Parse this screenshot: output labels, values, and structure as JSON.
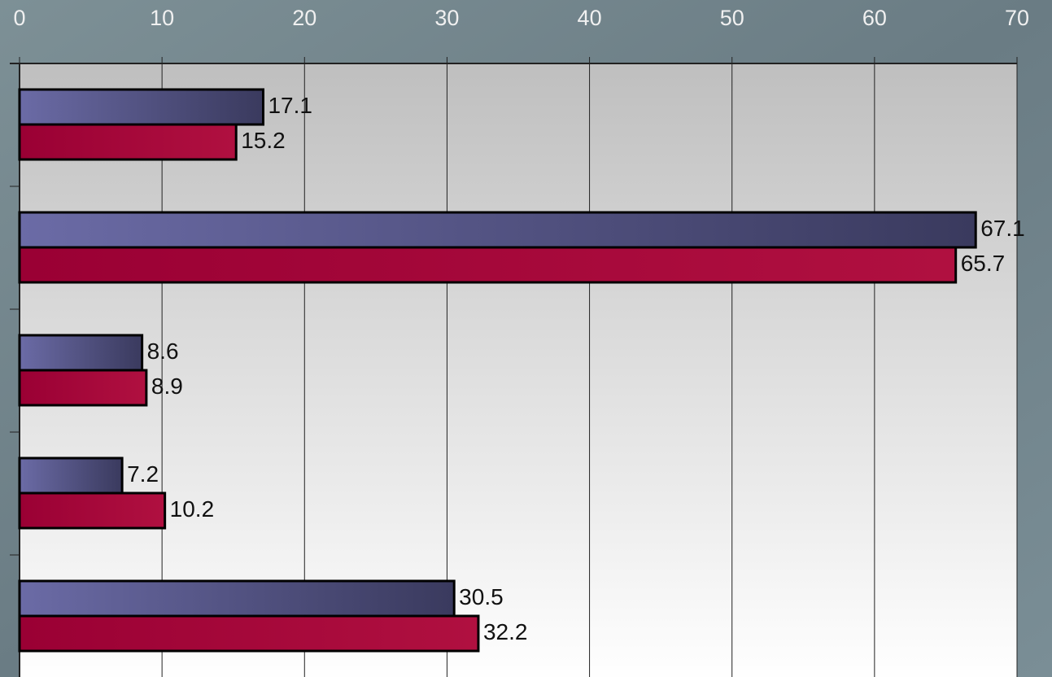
{
  "chart_data": {
    "type": "bar",
    "orientation": "horizontal",
    "categories": [
      null,
      null,
      null,
      null,
      null
    ],
    "series": [
      {
        "color": "#5c5c94",
        "values": [
          17.1,
          67.1,
          8.6,
          7.2,
          30.5
        ]
      },
      {
        "color": "#a8003a",
        "values": [
          15.2,
          65.7,
          8.9,
          10.2,
          32.2
        ]
      }
    ],
    "xlim": [
      0,
      70
    ],
    "xticks": [
      0,
      10,
      20,
      30,
      40,
      50,
      60,
      70
    ],
    "grid": true
  }
}
